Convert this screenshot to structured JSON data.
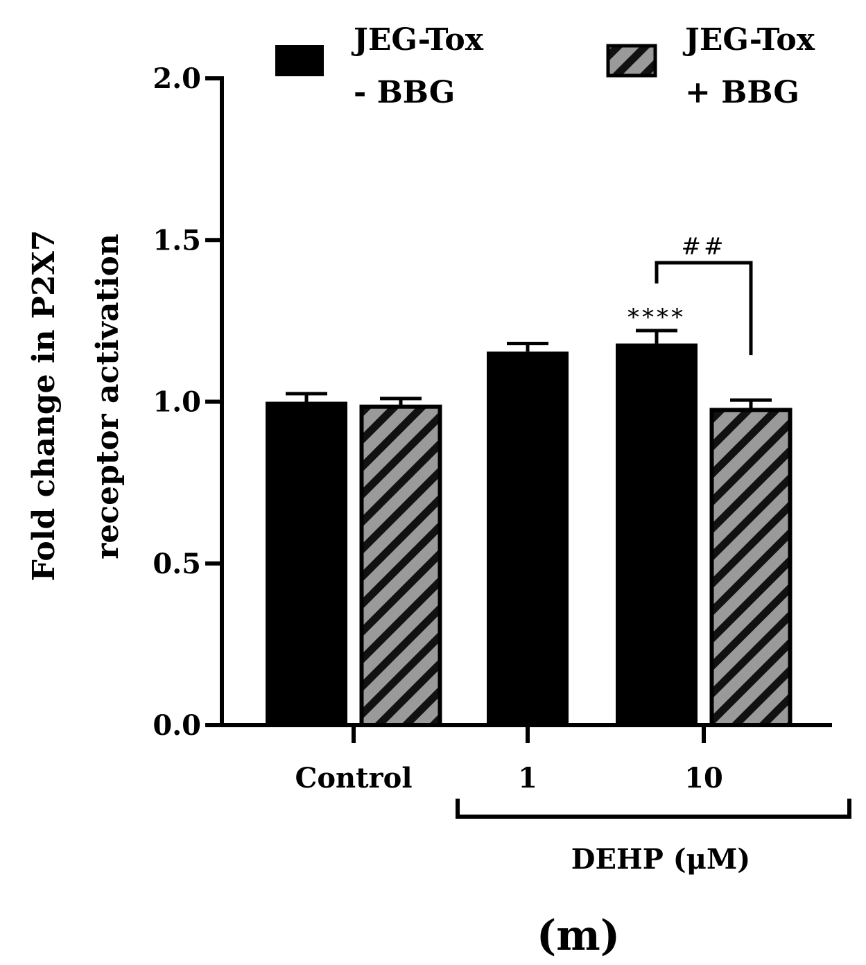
{
  "chart_data": {
    "type": "bar",
    "ylabel": [
      "Fold change in P2X7",
      "receptor activation"
    ],
    "ylim": [
      0,
      2.0
    ],
    "yticks": [
      "0.0",
      "0.5",
      "1.0",
      "1.5",
      "2.0"
    ],
    "categories": [
      "Control",
      "1",
      "10"
    ],
    "group_label": "DEHP (μM)",
    "series": [
      {
        "name": [
          "JEG-Tox",
          "- BBG"
        ],
        "values": [
          1.0,
          1.155,
          1.18
        ],
        "errors": [
          0.025,
          0.025,
          0.04
        ],
        "fill": "#000000",
        "pattern": "solid",
        "present": [
          true,
          true,
          true
        ]
      },
      {
        "name": [
          "JEG-Tox",
          "+ BBG"
        ],
        "values": [
          0.99,
          null,
          0.98
        ],
        "errors": [
          0.02,
          null,
          0.025
        ],
        "fill": "#999999",
        "pattern": "hatched",
        "present": [
          true,
          false,
          true
        ]
      }
    ],
    "annotations": [
      {
        "text": "****",
        "category": "10",
        "series": 0
      },
      {
        "text": "##",
        "category": "10",
        "type": "bracket"
      }
    ],
    "panel_label": "(m)"
  }
}
